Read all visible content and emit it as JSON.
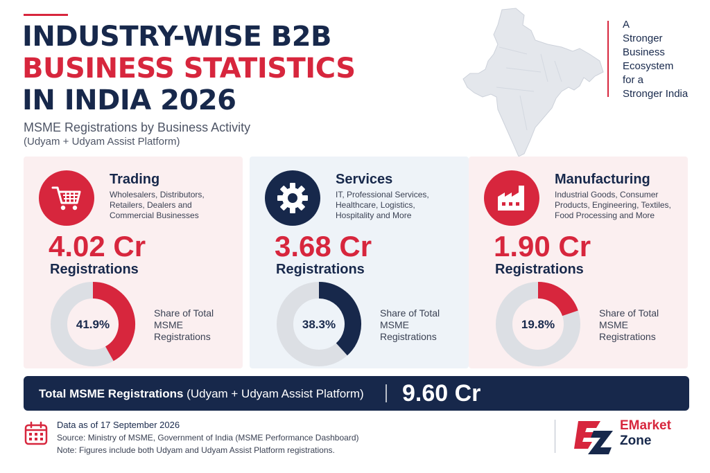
{
  "title": {
    "line1": "INDUSTRY-WISE B2B",
    "line2": "BUSINESS STATISTICS",
    "line3": "IN INDIA 2026"
  },
  "subtitle": "MSME Registrations by Business Activity",
  "subtitle_platform": "(Udyam + Udyam Assist Platform)",
  "slogan": {
    "line1": "A",
    "line2": "Stronger",
    "line3": "Business",
    "line4": "Ecosystem",
    "line5": "for a",
    "line6": "Stronger India"
  },
  "cards": [
    {
      "title": "Trading",
      "description": "Wholesalers, Distributors, Retailers, Dealers and Commercial Businesses",
      "value": "4.02 Cr",
      "value_label": "Registrations",
      "share_text": "41.9%",
      "share_label": "Share of Total MSME Registrations",
      "icon": "shopping-cart-icon",
      "accent": "#d7263d"
    },
    {
      "title": "Services",
      "description": "IT, Professional Services, Healthcare, Logistics, Hospitality and More",
      "value": "3.68 Cr",
      "value_label": "Registrations",
      "share_text": "38.3%",
      "share_label": "Share of Total MSME Registrations",
      "icon": "gear-icon",
      "accent": "#17284b"
    },
    {
      "title": "Manufacturing",
      "description": "Industrial Goods, Consumer Products, Engineering, Textiles, Food Processing and More",
      "value": "1.90 Cr",
      "value_label": "Registrations",
      "share_text": "19.8%",
      "share_label": "Share of Total MSME Registrations",
      "icon": "factory-icon",
      "accent": "#d7263d"
    }
  ],
  "total": {
    "label": "Total MSME Registrations",
    "label_note": "(Udyam + Udyam Assist Platform)",
    "value": "9.60 Cr"
  },
  "footer": {
    "as_of": "Data as of 17 September 2026",
    "source": "Source: Ministry of MSME, Government of India (MSME Performance Dashboard)",
    "note": "Note: Figures include both Udyam and Udyam Assist Platform registrations."
  },
  "logo": {
    "line1": "EMarket",
    "line2": "Zone"
  },
  "colors": {
    "navy": "#17284b",
    "red": "#d7263d",
    "ring_background": "#dcdfe4"
  },
  "chart_data": {
    "type": "pie",
    "categories": [
      "Trading",
      "Services",
      "Manufacturing"
    ],
    "values": [
      41.9,
      38.3,
      19.8
    ],
    "registrations_cr": [
      4.02,
      3.68,
      1.9
    ],
    "total_cr": 9.6
  }
}
